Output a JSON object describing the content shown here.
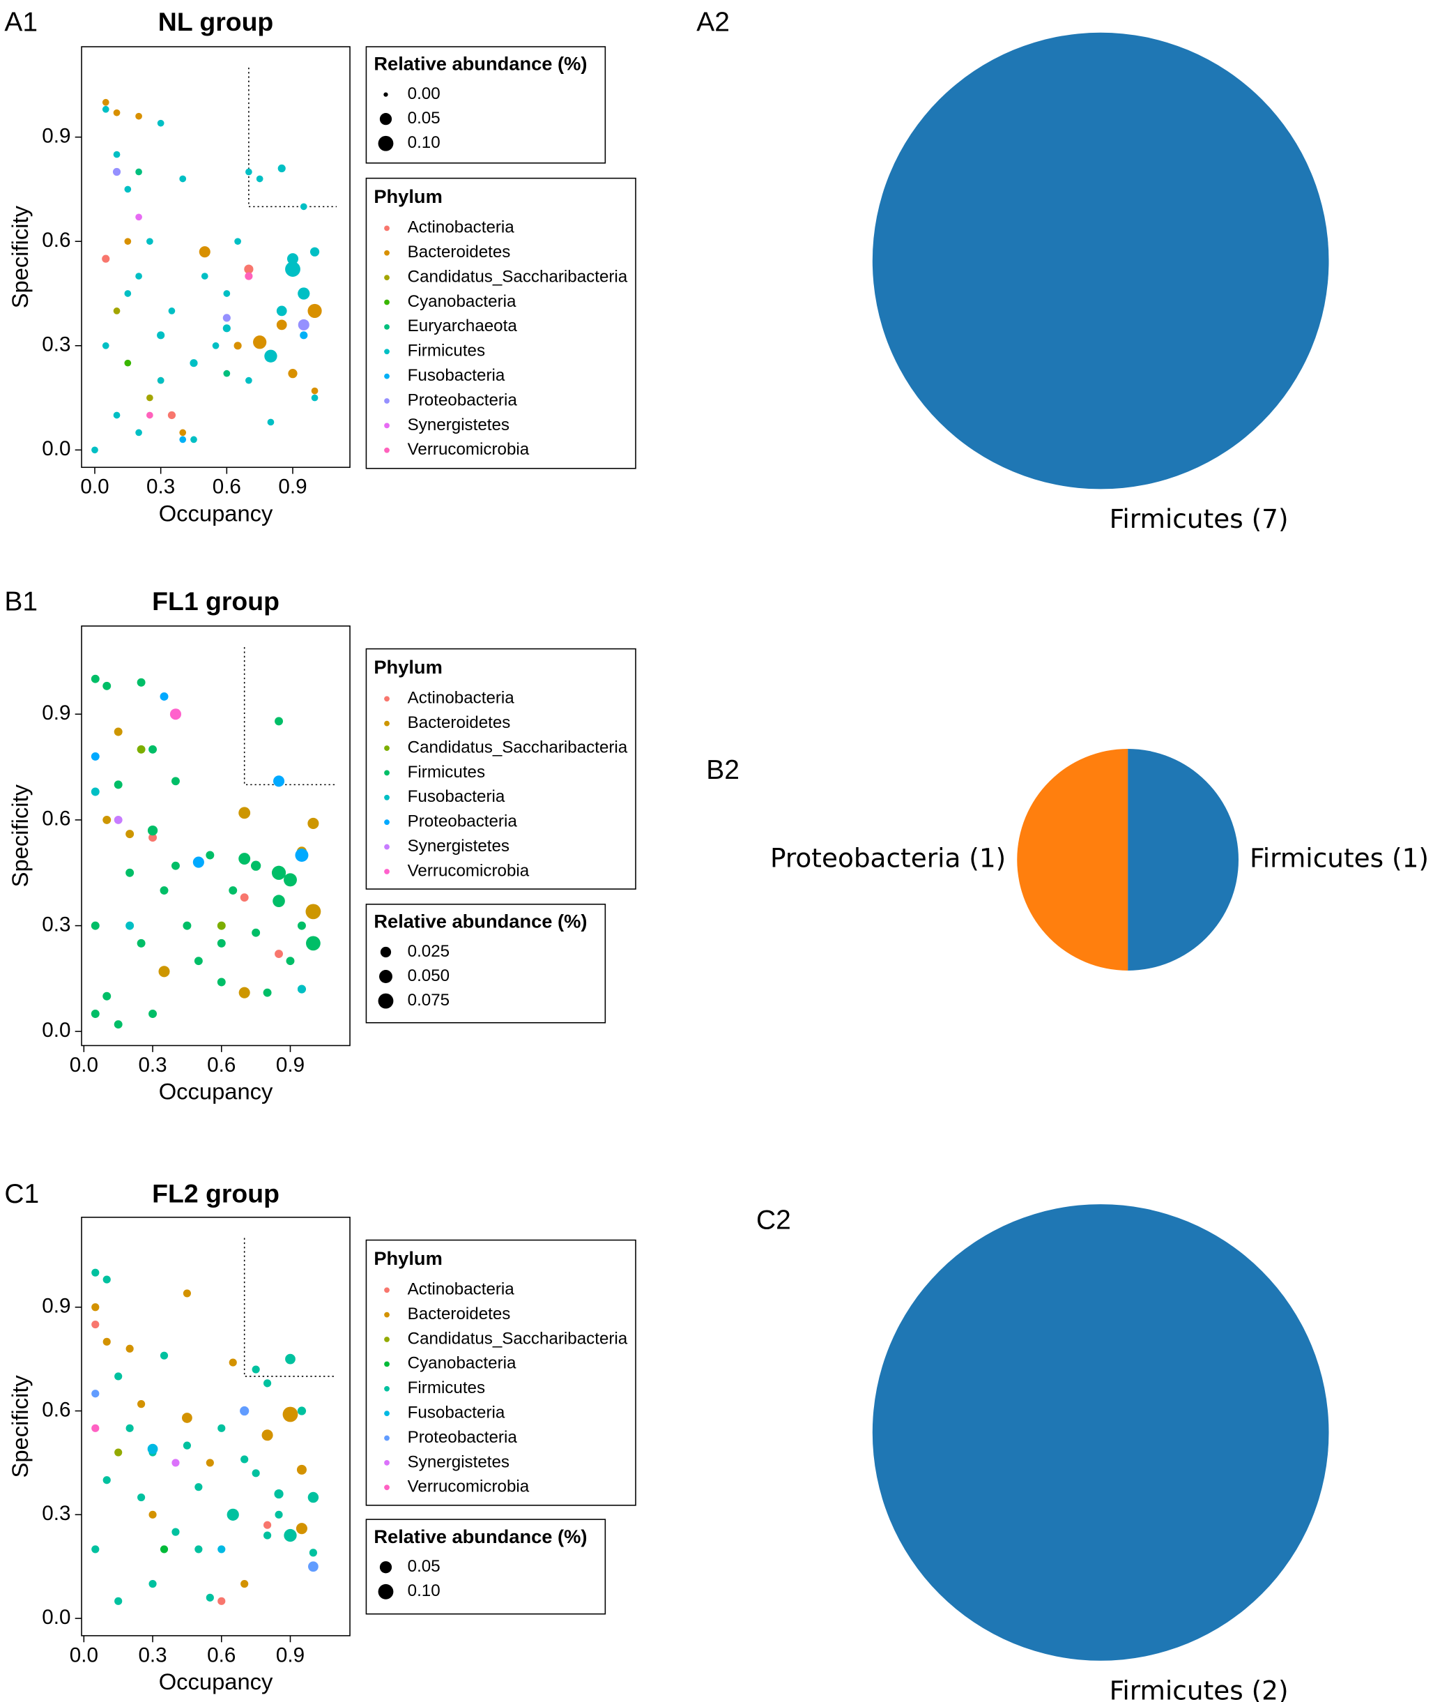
{
  "chart_data": [
    {
      "type": "scatter",
      "panel_label": "A1",
      "title": "NL group",
      "xlabel": "Occupancy",
      "ylabel": "Specificity",
      "xlim": [
        -0.06,
        1.16
      ],
      "ylim": [
        -0.05,
        1.16
      ],
      "xticks": [
        {
          "value": 0,
          "label": "0.0"
        },
        0.3,
        0.6,
        0.9
      ],
      "yticks": [
        {
          "value": 0,
          "label": "0.0"
        },
        0.3,
        0.6,
        0.9
      ],
      "threshold": 0.7,
      "size_legend": {
        "title": "Relative abundance (%)",
        "ticks": [
          {
            "value": 0,
            "label": "0.00"
          },
          0.05,
          {
            "value": 0.1,
            "label": "0.10"
          }
        ]
      },
      "legend_title": "Phylum",
      "series": [
        {
          "name": "Actinobacteria",
          "color": "#F8766D",
          "x": [
            0.05,
            0.35,
            0.7
          ],
          "y": [
            0.55,
            0.1,
            0.52
          ],
          "sizes": [
            0.01,
            0.01,
            0.02
          ]
        },
        {
          "name": "Bacteroidetes",
          "color": "#D89000",
          "x": [
            0.05,
            0.1,
            0.2,
            0.3,
            0.5,
            0.65,
            0.75,
            0.85,
            0.9,
            1.0,
            1.0,
            0.15,
            0.4
          ],
          "y": [
            1.0,
            0.97,
            0.96,
            0.2,
            0.57,
            0.3,
            0.31,
            0.36,
            0.22,
            0.4,
            0.17,
            0.6,
            0.05
          ],
          "sizes": [
            0.005,
            0.005,
            0.005,
            0.005,
            0.04,
            0.01,
            0.07,
            0.03,
            0.02,
            0.08,
            0.005,
            0.005,
            0.005
          ]
        },
        {
          "name": "Candidatus_Saccharibacteria",
          "color": "#A3A500",
          "x": [
            0.1,
            0.25
          ],
          "y": [
            0.4,
            0.15
          ],
          "sizes": [
            0.005,
            0.005
          ]
        },
        {
          "name": "Cyanobacteria",
          "color": "#39B600",
          "x": [
            0.15
          ],
          "y": [
            0.25
          ],
          "sizes": [
            0.005
          ]
        },
        {
          "name": "Euryarchaeota",
          "color": "#00BF7D",
          "x": [
            0.2,
            0.6
          ],
          "y": [
            0.8,
            0.22
          ],
          "sizes": [
            0.005,
            0.005
          ]
        },
        {
          "name": "Firmicutes",
          "color": "#00BFC4",
          "x": [
            0.05,
            0.05,
            0.1,
            0.1,
            0.15,
            0.15,
            0.2,
            0.2,
            0.25,
            0.3,
            0.3,
            0.35,
            0.4,
            0.45,
            0.5,
            0.55,
            0.6,
            0.65,
            0.7,
            0.7,
            0.75,
            0.8,
            0.85,
            0.9,
            0.95,
            0.95,
            1.0,
            1.0,
            0.3,
            0.45,
            0.6,
            0.8,
            0.85,
            0.9,
            0.0
          ],
          "y": [
            0.98,
            0.3,
            0.85,
            0.1,
            0.75,
            0.45,
            0.5,
            0.05,
            0.6,
            0.94,
            0.2,
            0.4,
            0.78,
            0.03,
            0.5,
            0.3,
            0.45,
            0.6,
            0.8,
            0.2,
            0.78,
            0.27,
            0.81,
            0.52,
            0.7,
            0.45,
            0.57,
            0.15,
            0.33,
            0.25,
            0.35,
            0.08,
            0.4,
            0.55,
            0.0
          ],
          "sizes": [
            0.005,
            0.005,
            0.005,
            0.005,
            0.005,
            0.005,
            0.005,
            0.005,
            0.005,
            0.005,
            0.005,
            0.005,
            0.005,
            0.005,
            0.005,
            0.005,
            0.005,
            0.005,
            0.005,
            0.005,
            0.005,
            0.06,
            0.01,
            0.1,
            0.005,
            0.05,
            0.02,
            0.005,
            0.01,
            0.01,
            0.01,
            0.005,
            0.03,
            0.04,
            0.005
          ]
        },
        {
          "name": "Fusobacteria",
          "color": "#00B0F6",
          "x": [
            0.4,
            0.95
          ],
          "y": [
            0.03,
            0.33
          ],
          "sizes": [
            0.005,
            0.01
          ]
        },
        {
          "name": "Proteobacteria",
          "color": "#9590FF",
          "x": [
            0.1,
            0.95,
            0.6
          ],
          "y": [
            0.8,
            0.36,
            0.38
          ],
          "sizes": [
            0.01,
            0.04,
            0.01
          ]
        },
        {
          "name": "Synergistetes",
          "color": "#E76BF3",
          "x": [
            0.2
          ],
          "y": [
            0.67
          ],
          "sizes": [
            0.005
          ]
        },
        {
          "name": "Verrucomicrobia",
          "color": "#FF62BC",
          "x": [
            0.25,
            0.7
          ],
          "y": [
            0.1,
            0.5
          ],
          "sizes": [
            0.005,
            0.01
          ]
        }
      ]
    },
    {
      "type": "scatter",
      "panel_label": "B1",
      "title": "FL1 group",
      "xlabel": "Occupancy",
      "ylabel": "Specificity",
      "xlim": [
        -0.01,
        1.16
      ],
      "ylim": [
        -0.04,
        1.15
      ],
      "xticks": [
        {
          "value": 0,
          "label": "0.0"
        },
        0.3,
        0.6,
        0.9
      ],
      "yticks": [
        {
          "value": 0,
          "label": "0.0"
        },
        0.3,
        0.6,
        0.9
      ],
      "threshold": 0.7,
      "size_legend": {
        "title": "Relative abundance (%)",
        "ticks": [
          0.025,
          {
            "value": 0.05,
            "label": "0.050"
          },
          0.075
        ]
      },
      "legend_title": "Phylum",
      "series": [
        {
          "name": "Actinobacteria",
          "color": "#F8766D",
          "x": [
            0.3,
            0.7,
            0.85
          ],
          "y": [
            0.55,
            0.38,
            0.22
          ],
          "sizes": [
            0.01,
            0.01,
            0.01
          ]
        },
        {
          "name": "Bacteroidetes",
          "color": "#CD9600",
          "x": [
            0.15,
            0.2,
            0.35,
            0.7,
            0.7,
            1.0,
            1.0,
            0.95,
            0.1
          ],
          "y": [
            0.85,
            0.56,
            0.17,
            0.62,
            0.11,
            0.59,
            0.34,
            0.51,
            0.6
          ],
          "sizes": [
            0.01,
            0.01,
            0.03,
            0.035,
            0.03,
            0.03,
            0.075,
            0.02,
            0.01
          ]
        },
        {
          "name": "Candidatus_Saccharibacteria",
          "color": "#7CAE00",
          "x": [
            0.25,
            0.6
          ],
          "y": [
            0.8,
            0.3
          ],
          "sizes": [
            0.01,
            0.01
          ]
        },
        {
          "name": "Firmicutes",
          "color": "#00BE67",
          "x": [
            0.05,
            0.05,
            0.1,
            0.1,
            0.15,
            0.2,
            0.25,
            0.25,
            0.3,
            0.3,
            0.35,
            0.4,
            0.4,
            0.45,
            0.5,
            0.55,
            0.6,
            0.65,
            0.7,
            0.75,
            0.75,
            0.8,
            0.85,
            0.85,
            0.85,
            0.9,
            0.9,
            0.95,
            1.0,
            0.05,
            0.15,
            0.3,
            0.6,
            0.95
          ],
          "y": [
            1.0,
            0.3,
            0.98,
            0.1,
            0.7,
            0.45,
            0.99,
            0.25,
            0.57,
            0.05,
            0.4,
            0.71,
            0.47,
            0.3,
            0.2,
            0.5,
            0.14,
            0.4,
            0.49,
            0.28,
            0.47,
            0.11,
            0.45,
            0.37,
            0.88,
            0.43,
            0.2,
            0.3,
            0.25,
            0.05,
            0.02,
            0.8,
            0.25,
            0.12
          ],
          "sizes": [
            0.01,
            0.01,
            0.01,
            0.01,
            0.01,
            0.01,
            0.01,
            0.01,
            0.02,
            0.01,
            0.01,
            0.01,
            0.01,
            0.01,
            0.01,
            0.01,
            0.01,
            0.01,
            0.035,
            0.01,
            0.02,
            0.01,
            0.06,
            0.04,
            0.01,
            0.05,
            0.01,
            0.01,
            0.065,
            0.01,
            0.01,
            0.01,
            0.01,
            0.01
          ]
        },
        {
          "name": "Fusobacteria",
          "color": "#00BFC4",
          "x": [
            0.05,
            0.2,
            0.95
          ],
          "y": [
            0.68,
            0.3,
            0.12
          ],
          "sizes": [
            0.01,
            0.01,
            0.01
          ]
        },
        {
          "name": "Proteobacteria",
          "color": "#00A9FF",
          "x": [
            0.05,
            0.5,
            0.85,
            0.95,
            0.35
          ],
          "y": [
            0.78,
            0.48,
            0.71,
            0.5,
            0.95
          ],
          "sizes": [
            0.01,
            0.03,
            0.03,
            0.05,
            0.01
          ]
        },
        {
          "name": "Synergistetes",
          "color": "#C77CFF",
          "x": [
            0.15
          ],
          "y": [
            0.6
          ],
          "sizes": [
            0.01
          ]
        },
        {
          "name": "Verrucomicrobia",
          "color": "#FF61CC",
          "x": [
            0.4
          ],
          "y": [
            0.9
          ],
          "sizes": [
            0.03
          ]
        }
      ]
    },
    {
      "type": "scatter",
      "panel_label": "C1",
      "title": "FL2 group",
      "xlabel": "Occupancy",
      "ylabel": "Specificity",
      "xlim": [
        -0.01,
        1.16
      ],
      "ylim": [
        -0.05,
        1.16
      ],
      "xticks": [
        {
          "value": 0,
          "label": "0.0"
        },
        0.3,
        0.6,
        0.9
      ],
      "yticks": [
        {
          "value": 0,
          "label": "0.0"
        },
        0.3,
        0.6,
        0.9
      ],
      "threshold": 0.7,
      "size_legend": {
        "title": "Relative abundance (%)",
        "ticks": [
          0.05,
          {
            "value": 0.1,
            "label": "0.10"
          }
        ]
      },
      "legend_title": "Phylum",
      "series": [
        {
          "name": "Actinobacteria",
          "color": "#F8766D",
          "x": [
            0.05,
            0.6,
            0.8
          ],
          "y": [
            0.85,
            0.05,
            0.27
          ],
          "sizes": [
            0.01,
            0.01,
            0.01
          ]
        },
        {
          "name": "Bacteroidetes",
          "color": "#D39200",
          "x": [
            0.05,
            0.1,
            0.2,
            0.3,
            0.45,
            0.45,
            0.55,
            0.65,
            0.8,
            0.9,
            0.95,
            0.95,
            0.7,
            0.25
          ],
          "y": [
            0.9,
            0.8,
            0.78,
            0.3,
            0.94,
            0.58,
            0.45,
            0.74,
            0.53,
            0.59,
            0.26,
            0.43,
            0.1,
            0.62
          ],
          "sizes": [
            0.01,
            0.01,
            0.01,
            0.01,
            0.01,
            0.03,
            0.01,
            0.01,
            0.04,
            0.1,
            0.04,
            0.025,
            0.01,
            0.01
          ]
        },
        {
          "name": "Candidatus_Saccharibacteria",
          "color": "#93AA00",
          "x": [
            0.15
          ],
          "y": [
            0.48
          ],
          "sizes": [
            0.01
          ]
        },
        {
          "name": "Cyanobacteria",
          "color": "#00BA38",
          "x": [
            0.35
          ],
          "y": [
            0.2
          ],
          "sizes": [
            0.01
          ]
        },
        {
          "name": "Firmicutes",
          "color": "#00C19F",
          "x": [
            0.05,
            0.05,
            0.1,
            0.1,
            0.15,
            0.2,
            0.25,
            0.3,
            0.35,
            0.4,
            0.45,
            0.5,
            0.55,
            0.6,
            0.65,
            0.7,
            0.75,
            0.8,
            0.8,
            0.85,
            0.9,
            0.9,
            0.95,
            1.0,
            1.0,
            0.15,
            0.3,
            0.5,
            0.75,
            0.85
          ],
          "y": [
            1.0,
            0.2,
            0.98,
            0.4,
            0.7,
            0.55,
            0.35,
            0.1,
            0.76,
            0.25,
            0.5,
            0.38,
            0.06,
            0.55,
            0.3,
            0.46,
            0.72,
            0.68,
            0.24,
            0.36,
            0.75,
            0.24,
            0.6,
            0.35,
            0.19,
            0.05,
            0.48,
            0.2,
            0.42,
            0.3
          ],
          "sizes": [
            0.01,
            0.01,
            0.01,
            0.01,
            0.01,
            0.01,
            0.01,
            0.01,
            0.01,
            0.01,
            0.01,
            0.01,
            0.01,
            0.01,
            0.05,
            0.01,
            0.01,
            0.01,
            0.01,
            0.02,
            0.03,
            0.06,
            0.015,
            0.035,
            0.01,
            0.01,
            0.01,
            0.01,
            0.01,
            0.01
          ]
        },
        {
          "name": "Fusobacteria",
          "color": "#00B9E3",
          "x": [
            0.3,
            0.6
          ],
          "y": [
            0.49,
            0.2
          ],
          "sizes": [
            0.03,
            0.01
          ]
        },
        {
          "name": "Proteobacteria",
          "color": "#619CFF",
          "x": [
            0.05,
            0.7,
            1.0
          ],
          "y": [
            0.65,
            0.6,
            0.15
          ],
          "sizes": [
            0.01,
            0.02,
            0.03
          ]
        },
        {
          "name": "Synergistetes",
          "color": "#DB72FB",
          "x": [
            0.4
          ],
          "y": [
            0.45
          ],
          "sizes": [
            0.01
          ]
        },
        {
          "name": "Verrucomicrobia",
          "color": "#FF61C3",
          "x": [
            0.05
          ],
          "y": [
            0.55
          ],
          "sizes": [
            0.01
          ]
        }
      ]
    },
    {
      "type": "pie",
      "panel_label": "A2",
      "values": [
        7
      ],
      "value_labels": [
        "Firmicutes (7)"
      ],
      "colors": [
        "#1f77b4"
      ]
    },
    {
      "type": "pie",
      "panel_label": "B2",
      "values": [
        1,
        1
      ],
      "value_labels": [
        "Firmicutes (1)",
        "Proteobacteria (1)"
      ],
      "colors": [
        "#1f77b4",
        "#ff7f0e"
      ]
    },
    {
      "type": "pie",
      "panel_label": "C2",
      "values": [
        2
      ],
      "value_labels": [
        "Firmicutes (2)"
      ],
      "colors": [
        "#1f77b4"
      ]
    }
  ]
}
